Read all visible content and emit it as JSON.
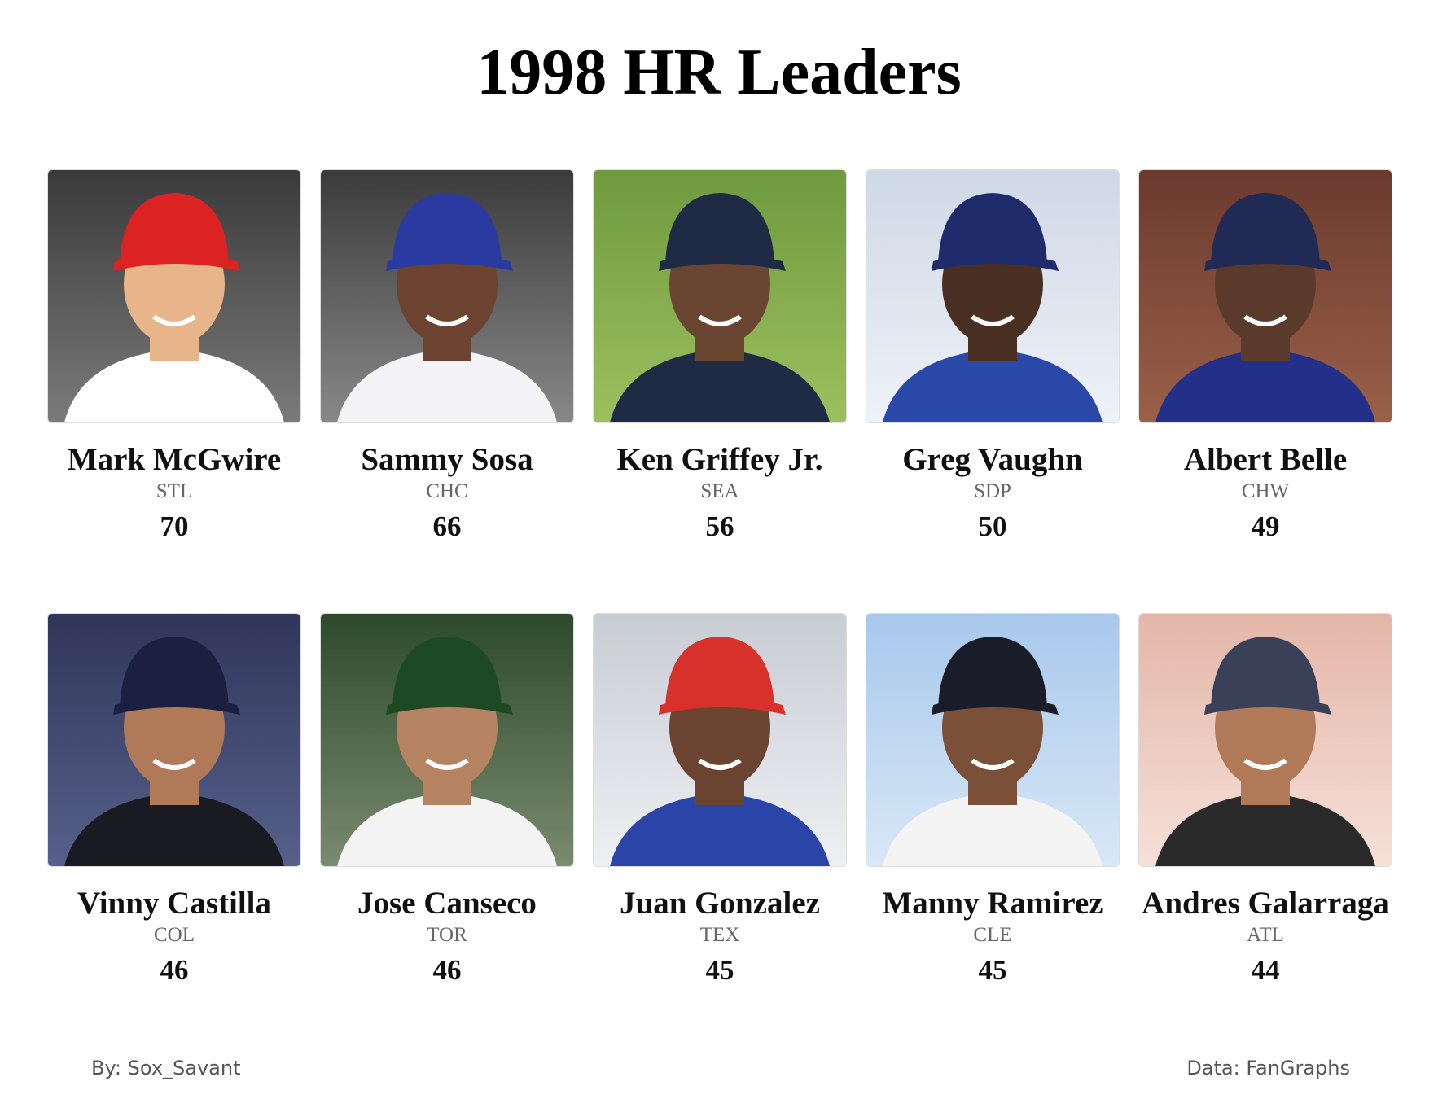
{
  "header": {
    "title": "1998 HR Leaders"
  },
  "players": [
    {
      "name": "Mark McGwire",
      "team": "STL",
      "hr": 70
    },
    {
      "name": "Sammy Sosa",
      "team": "CHC",
      "hr": 66
    },
    {
      "name": "Ken Griffey Jr.",
      "team": "SEA",
      "hr": 56
    },
    {
      "name": "Greg Vaughn",
      "team": "SDP",
      "hr": 50
    },
    {
      "name": "Albert Belle",
      "team": "CHW",
      "hr": 49
    },
    {
      "name": "Vinny Castilla",
      "team": "COL",
      "hr": 46
    },
    {
      "name": "Jose Canseco",
      "team": "TOR",
      "hr": 46
    },
    {
      "name": "Juan Gonzalez",
      "team": "TEX",
      "hr": 45
    },
    {
      "name": "Manny Ramirez",
      "team": "CLE",
      "hr": 45
    },
    {
      "name": "Andres Galarraga",
      "team": "ATL",
      "hr": 44
    }
  ],
  "footer": {
    "credit": "By: Sox_Savant",
    "source": "Data: FanGraphs"
  }
}
